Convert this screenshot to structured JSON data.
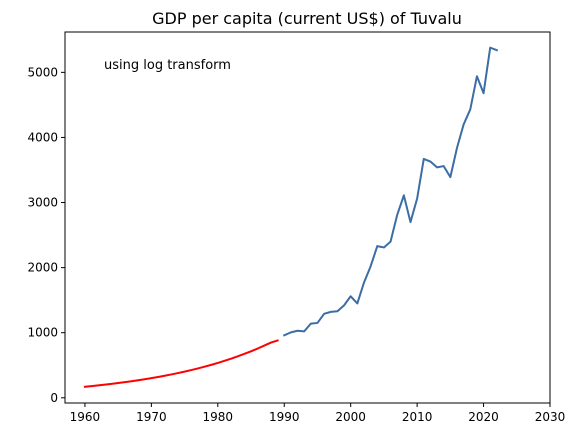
{
  "chart_data": {
    "type": "line",
    "title": "GDP per capita (current US$) of Tuvalu",
    "annotation": "using log transform",
    "xlabel": "",
    "ylabel": "",
    "xlim": [
      1957,
      2030
    ],
    "ylim": [
      -80,
      5620
    ],
    "grid": false,
    "x_ticks": [
      1960,
      1970,
      1980,
      1990,
      2000,
      2010,
      2020,
      2030
    ],
    "y_ticks": [
      0,
      1000,
      2000,
      3000,
      4000,
      5000
    ],
    "series": [
      {
        "color": "#ff0000",
        "x": [
          1960,
          1961,
          1962,
          1963,
          1964,
          1965,
          1966,
          1967,
          1968,
          1969,
          1970,
          1971,
          1972,
          1973,
          1974,
          1975,
          1976,
          1977,
          1978,
          1979,
          1980,
          1981,
          1982,
          1983,
          1984,
          1985,
          1986,
          1987,
          1988,
          1989
        ],
        "y": [
          170,
          180,
          191,
          202,
          214,
          227,
          240,
          254,
          269,
          285,
          302,
          320,
          339,
          359,
          380,
          402,
          426,
          451,
          478,
          506,
          536,
          568,
          601,
          637,
          675,
          715,
          757,
          802,
          849,
          880
        ]
      },
      {
        "color": "#3a6ea5",
        "x": [
          1990,
          1991,
          1992,
          1993,
          1994,
          1995,
          1996,
          1997,
          1998,
          1999,
          2000,
          2001,
          2002,
          2003,
          2004,
          2005,
          2006,
          2007,
          2008,
          2009,
          2010,
          2011,
          2012,
          2013,
          2014,
          2015,
          2016,
          2017,
          2018,
          2019,
          2020,
          2021,
          2022
        ],
        "y": [
          960,
          1005,
          1030,
          1020,
          1140,
          1150,
          1290,
          1320,
          1330,
          1420,
          1560,
          1450,
          1770,
          2020,
          2330,
          2310,
          2400,
          2810,
          3110,
          2700,
          3060,
          3670,
          3630,
          3540,
          3560,
          3390,
          3840,
          4200,
          4430,
          4940,
          4680,
          5380,
          5340
        ]
      }
    ]
  }
}
